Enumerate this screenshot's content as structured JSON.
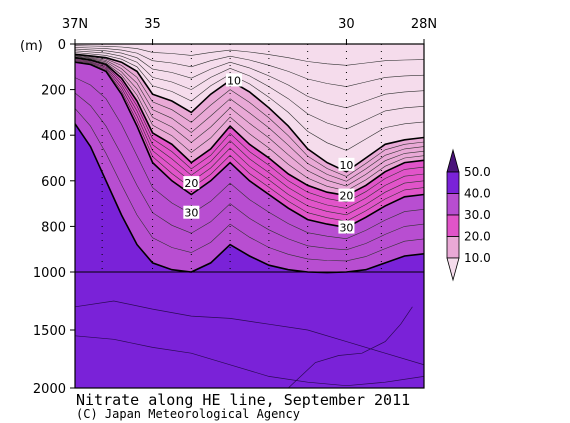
{
  "chart_data": {
    "type": "heatmap",
    "title": "Nitrate along HE line, September 2011",
    "credit": "(C) Japan Meteorological Agency",
    "x_axis": {
      "ticks": [
        "37N",
        "35",
        "30",
        "28N"
      ],
      "latitude_values": [
        37,
        35,
        30,
        28
      ],
      "range": [
        37,
        28
      ]
    },
    "y_axis": {
      "unit_label": "(m)",
      "ticks": [
        "0",
        "200",
        "400",
        "600",
        "800",
        "1000",
        "1500",
        "2000"
      ],
      "depth_values": [
        0,
        200,
        400,
        600,
        800,
        1000,
        1500,
        2000
      ],
      "range": [
        0,
        2000
      ],
      "note": "upper 0-1000 m stretched; 1000-2000 m compressed"
    },
    "colorbar": {
      "labels": [
        "50.0",
        "40.0",
        "30.0",
        "20.0",
        "10.0"
      ],
      "levels": [
        10,
        20,
        30,
        40,
        50
      ],
      "colors": [
        "#f5dcec",
        "#e9a9d6",
        "#e154c9",
        "#b84ed1",
        "#7a22d8",
        "#4a147a"
      ]
    },
    "contour_labels": [
      {
        "text": "10",
        "lat": 32.9,
        "depth": 160
      },
      {
        "text": "10",
        "lat": 30.0,
        "depth": 530
      },
      {
        "text": "20",
        "lat": 34.0,
        "depth": 610
      },
      {
        "text": "20",
        "lat": 30.0,
        "depth": 665
      },
      {
        "text": "30",
        "lat": 34.0,
        "depth": 740
      },
      {
        "text": "30",
        "lat": 30.0,
        "depth": 805
      }
    ],
    "station_latitudes": [
      36.3,
      35.0,
      34.0,
      33.0,
      32.0,
      31.0,
      30.0,
      29.1
    ],
    "profile_latitudes": [
      37,
      36.6,
      36.2,
      35.8,
      35.4,
      35.0,
      34.5,
      34.0,
      33.5,
      33.0,
      32.5,
      32.0,
      31.5,
      31.0,
      30.5,
      30.0,
      29.5,
      29.0,
      28.5,
      28.0
    ],
    "isolines_depth_m": {
      "10": [
        45,
        52,
        60,
        80,
        120,
        220,
        250,
        300,
        220,
        160,
        210,
        280,
        360,
        460,
        520,
        560,
        500,
        440,
        420,
        410
      ],
      "20": [
        60,
        70,
        90,
        150,
        250,
        390,
        440,
        520,
        460,
        360,
        440,
        500,
        570,
        620,
        650,
        665,
        620,
        560,
        520,
        510
      ],
      "30": [
        80,
        90,
        120,
        220,
        360,
        520,
        600,
        660,
        600,
        520,
        600,
        660,
        720,
        770,
        790,
        805,
        760,
        710,
        670,
        660
      ],
      "40": [
        350,
        450,
        600,
        750,
        880,
        960,
        990,
        1000,
        960,
        880,
        930,
        970,
        990,
        1000,
        1005,
        1000,
        990,
        960,
        930,
        920
      ]
    }
  }
}
